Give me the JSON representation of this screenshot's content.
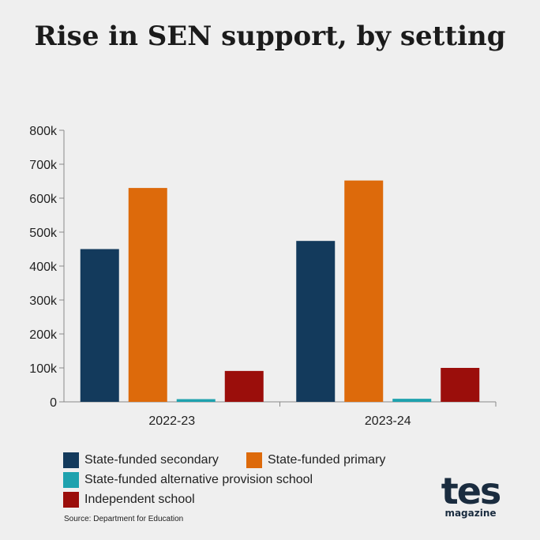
{
  "chart_data": {
    "type": "bar",
    "title": "Rise in SEN support, by setting",
    "categories": [
      "2022-23",
      "2023-24"
    ],
    "series": [
      {
        "name": "State-funded secondary",
        "color": "#133a5c",
        "values": [
          450000,
          474000
        ]
      },
      {
        "name": "State-funded primary",
        "color": "#dd6a0b",
        "values": [
          630000,
          652000
        ]
      },
      {
        "name": "State-funded alternative provision school",
        "color": "#1ea2ae",
        "values": [
          8000,
          9000
        ]
      },
      {
        "name": "Independent school",
        "color": "#9b0e0b",
        "values": [
          91000,
          100000
        ]
      }
    ],
    "ylim": [
      0,
      800000
    ],
    "yticks": [
      {
        "value": 0,
        "label": "0"
      },
      {
        "value": 100000,
        "label": "100k"
      },
      {
        "value": 200000,
        "label": "200k"
      },
      {
        "value": 300000,
        "label": "300k"
      },
      {
        "value": 400000,
        "label": "400k"
      },
      {
        "value": 500000,
        "label": "500k"
      },
      {
        "value": 600000,
        "label": "600k"
      },
      {
        "value": 700000,
        "label": "700k"
      },
      {
        "value": 800000,
        "label": "800k"
      }
    ],
    "grid": false,
    "legend_position": "bottom"
  },
  "source": "Source: Department for Education",
  "logo": {
    "main": "tes",
    "sub": "magazine"
  }
}
